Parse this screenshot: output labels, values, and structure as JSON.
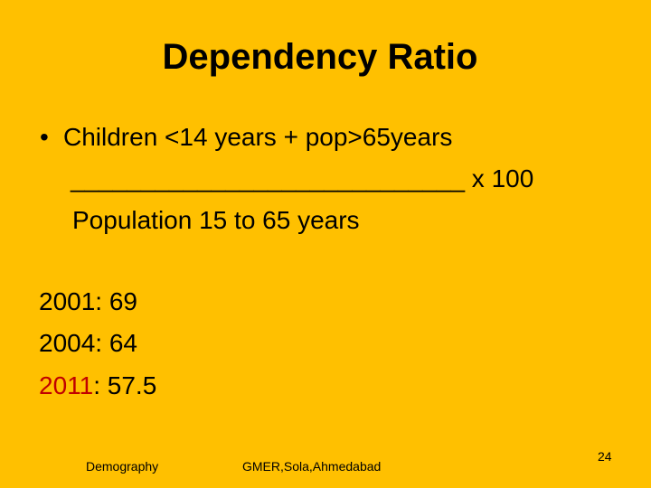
{
  "slide": {
    "title": "Dependency Ratio",
    "bullet": "•",
    "numerator": "Children <14 years + pop>65years",
    "fraction_bar": "____________________________",
    "multiplier": " x 100",
    "denominator": "Population 15 to 65 years",
    "stats": [
      {
        "year": "2001",
        "separator": ": ",
        "value": "69"
      },
      {
        "year": "2004",
        "separator": ": ",
        "value": "64"
      },
      {
        "year": "2011",
        "separator": ": ",
        "value": "57.5"
      }
    ],
    "highlight_color": "#C00000",
    "background_color": "#FFC000"
  },
  "footer": {
    "left": "Demography",
    "center": "GMER,Sola,Ahmedabad",
    "page_number": "24"
  }
}
